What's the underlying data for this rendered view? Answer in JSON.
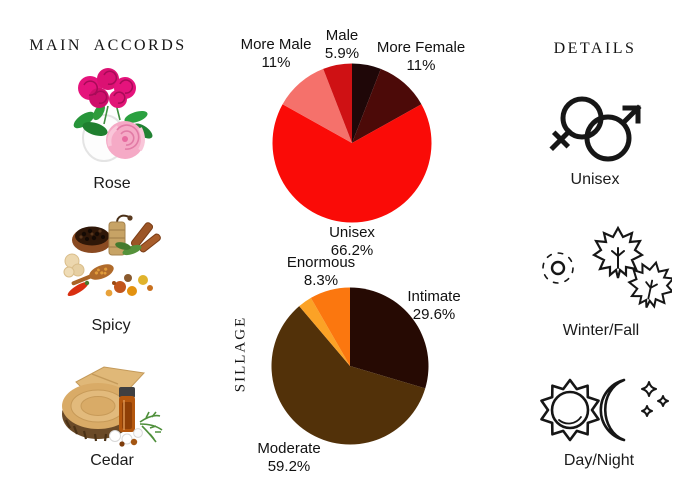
{
  "page": {
    "bg_color": "#ffffff",
    "text_color": "#1b1b1b"
  },
  "left_panel": {
    "title": "MAIN ACCORDS",
    "items": [
      {
        "label": "Rose",
        "icon": "rose-bouquet-photo"
      },
      {
        "label": "Spicy",
        "icon": "spices-assortment-photo"
      },
      {
        "label": "Cedar",
        "icon": "cedar-wood-oil-photo"
      }
    ]
  },
  "right_panel": {
    "title": "DETAILS",
    "items": [
      {
        "label": "Unisex",
        "icon": "unisex-gender-icon"
      },
      {
        "label": "Winter/Fall",
        "icon": "snowflake-and-maple-leaves-icon"
      },
      {
        "label": "Day/Night",
        "icon": "sun-and-moon-icon"
      }
    ]
  },
  "chart_data": [
    {
      "type": "pie",
      "name": "gender",
      "title": "",
      "axis_label": "",
      "start_angle_deg": 90,
      "direction": "clockwise",
      "legend": "none",
      "slices": [
        {
          "label": "",
          "value": 5.9,
          "pct_label": "",
          "color": "#1f0708"
        },
        {
          "label": "More Female",
          "value": 11,
          "pct_label": "11%",
          "color": "#4c0a08"
        },
        {
          "label": "Unisex",
          "value": 66.2,
          "pct_label": "66.2%",
          "color": "#fa0b07"
        },
        {
          "label": "More Male",
          "value": 11,
          "pct_label": "11%",
          "color": "#f5716b"
        },
        {
          "label": "Male",
          "value": 5.9,
          "pct_label": "5.9%",
          "color": "#cf1114"
        }
      ]
    },
    {
      "type": "pie",
      "name": "sillage",
      "title": "",
      "axis_label": "SILLAGE",
      "start_angle_deg": 90,
      "direction": "clockwise",
      "legend": "none",
      "slices": [
        {
          "label": "Intimate",
          "value": 29.6,
          "pct_label": "29.6%",
          "color": "#260a03"
        },
        {
          "label": "Moderate",
          "value": 59.2,
          "pct_label": "59.2%",
          "color": "#523109"
        },
        {
          "label": "",
          "value": 2.9,
          "pct_label": "",
          "color": "#fba226"
        },
        {
          "label": "Enormous",
          "value": 8.3,
          "pct_label": "8.3%",
          "color": "#fb770f"
        }
      ]
    }
  ]
}
